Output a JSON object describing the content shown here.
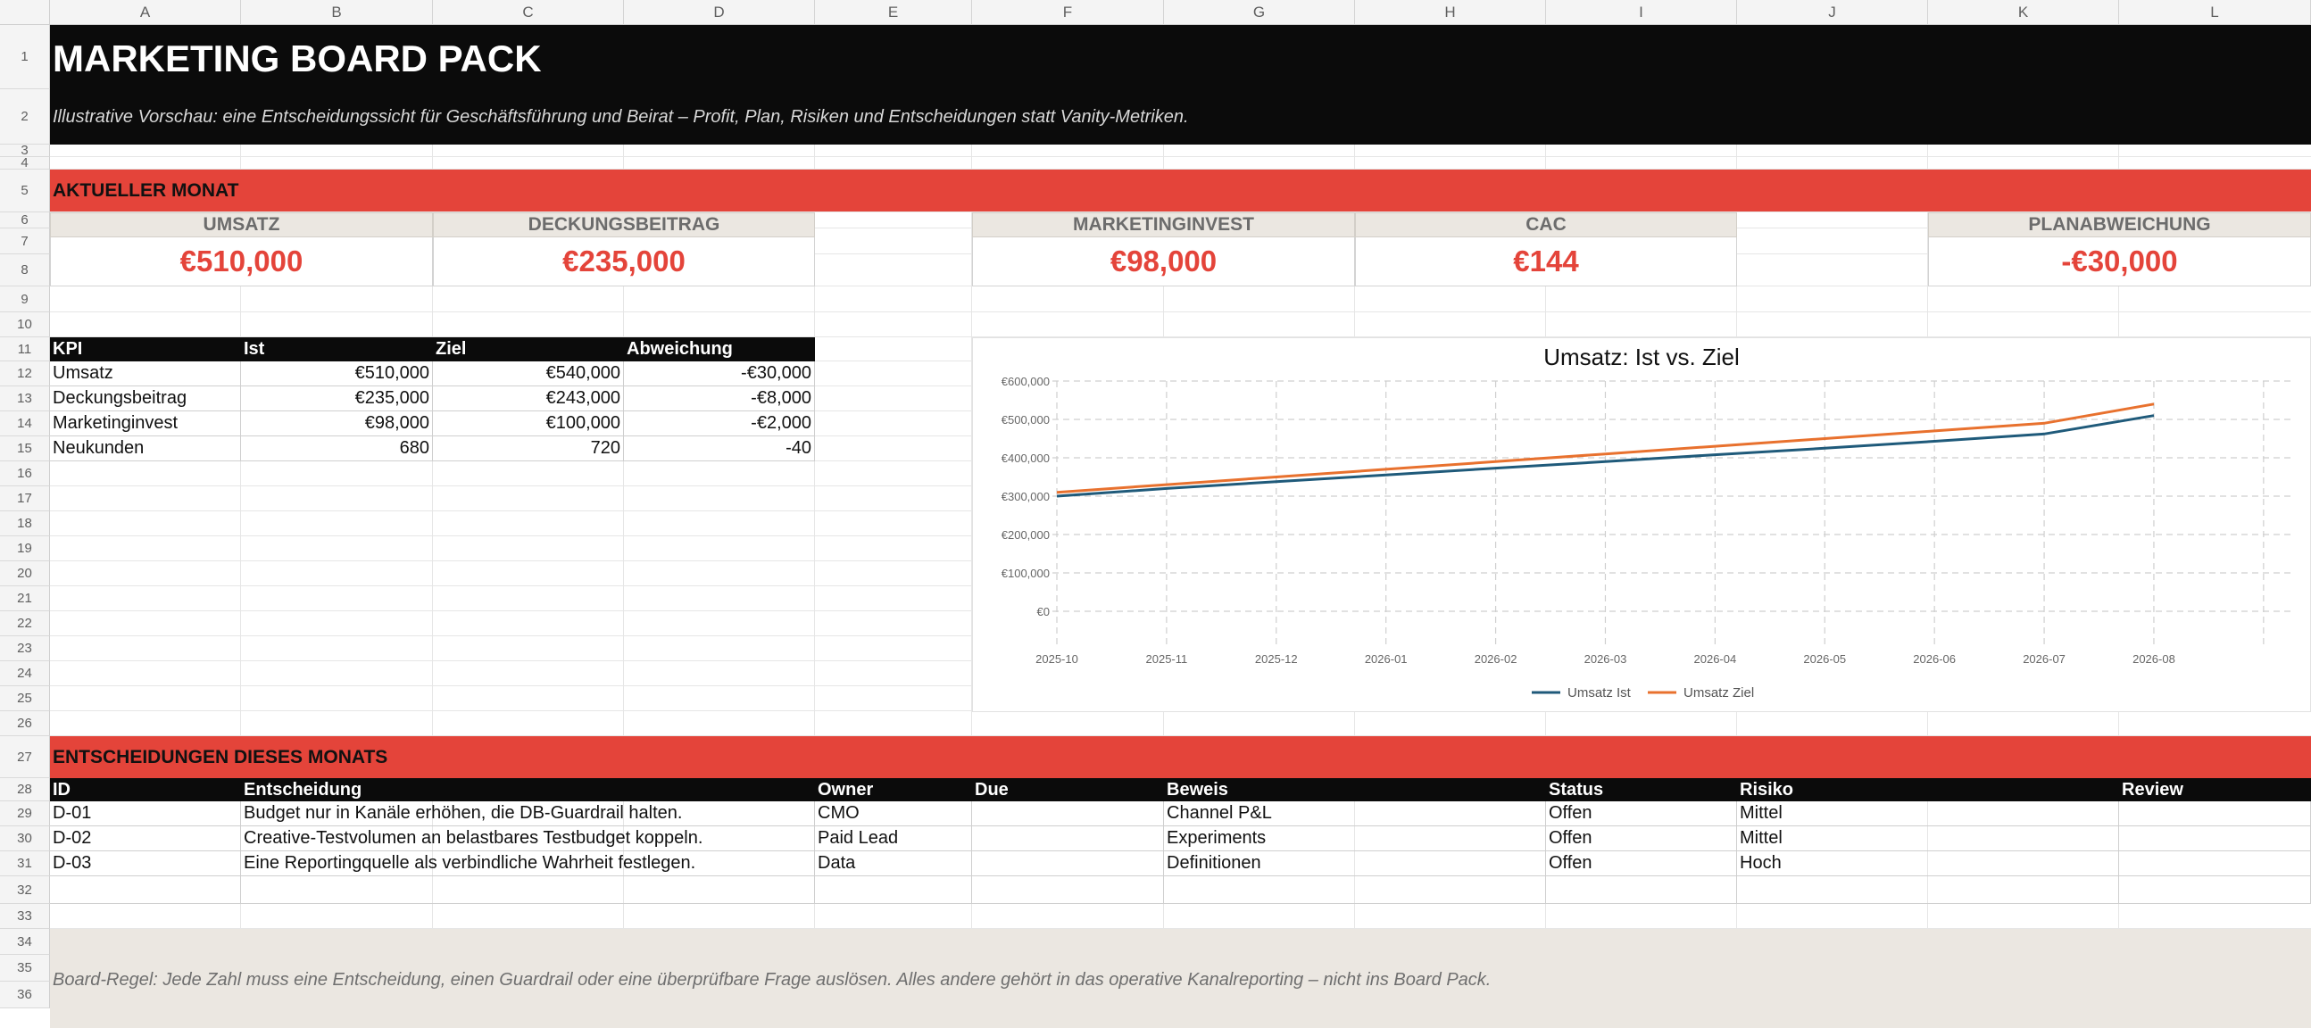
{
  "columns": [
    "A",
    "B",
    "C",
    "D",
    "E",
    "F",
    "G",
    "H",
    "I",
    "J",
    "K",
    "L"
  ],
  "rows": [
    "1",
    "2",
    "3",
    "4",
    "5",
    "6",
    "7",
    "8",
    "9",
    "10",
    "11",
    "12",
    "13",
    "14",
    "15",
    "16",
    "17",
    "18",
    "19",
    "20",
    "21",
    "22",
    "23",
    "24",
    "25",
    "26",
    "27",
    "28",
    "29",
    "30",
    "31",
    "32",
    "33",
    "34",
    "35",
    "36"
  ],
  "header": {
    "title": "MARKETING BOARD PACK",
    "subtitle": "Illustrative Vorschau: eine Entscheidungssicht für Geschäftsführung und Beirat – Profit, Plan, Risiken und Entscheidungen statt Vanity-Metriken."
  },
  "section_month": "AKTUELLER MONAT",
  "kpis": [
    {
      "label": "UMSATZ",
      "value": "€510,000"
    },
    {
      "label": "DECKUNGSBEITRAG",
      "value": "€235,000"
    },
    {
      "label": "MARKETINGINVEST",
      "value": "€98,000"
    },
    {
      "label": "CAC",
      "value": "€144"
    },
    {
      "label": "PLANABWEICHUNG",
      "value": "-€30,000"
    }
  ],
  "kpi_table": {
    "headers": [
      "KPI",
      "Ist",
      "Ziel",
      "Abweichung"
    ],
    "rows": [
      [
        "Umsatz",
        "€510,000",
        "€540,000",
        "-€30,000"
      ],
      [
        "Deckungsbeitrag",
        "€235,000",
        "€243,000",
        "-€8,000"
      ],
      [
        "Marketinginvest",
        "€98,000",
        "€100,000",
        "-€2,000"
      ],
      [
        "Neukunden",
        "680",
        "720",
        "-40"
      ]
    ]
  },
  "section_decisions": "ENTSCHEIDUNGEN DIESES MONATS",
  "decisions": {
    "headers": [
      "ID",
      "Entscheidung",
      "Owner",
      "Due",
      "Beweis",
      "Status",
      "Risiko",
      "Review"
    ],
    "rows": [
      [
        "D-01",
        "Budget nur in Kanäle erhöhen, die DB-Guardrail halten.",
        "CMO",
        "",
        "Channel P&L",
        "Offen",
        "Mittel",
        ""
      ],
      [
        "D-02",
        "Creative-Testvolumen an belastbares Testbudget koppeln.",
        "Paid Lead",
        "",
        "Experiments",
        "Offen",
        "Mittel",
        ""
      ],
      [
        "D-03",
        "Eine Reportingquelle als verbindliche Wahrheit festlegen.",
        "Data",
        "",
        "Definitionen",
        "Offen",
        "Hoch",
        ""
      ]
    ]
  },
  "footer_rule": "Board-Regel: Jede Zahl muss eine Entscheidung, einen Guardrail oder eine überprüfbare Frage auslösen. Alles andere gehört in das operative Kanalreporting – nicht ins Board Pack.",
  "colors": {
    "accent_red": "#e4443a",
    "black": "#0b0b0b",
    "beige": "#ebe7e1",
    "series_ist": "#1f5a7a",
    "series_ziel": "#e8712e"
  },
  "chart_data": {
    "type": "line",
    "title": "Umsatz: Ist vs. Ziel",
    "x": [
      "2025-10",
      "2025-11",
      "2025-12",
      "2026-01",
      "2026-02",
      "2026-03",
      "2026-04",
      "2026-05",
      "2026-06",
      "2026-07",
      "2026-08"
    ],
    "series": [
      {
        "name": "Umsatz Ist",
        "values": [
          300000,
          320000,
          338000,
          355000,
          373000,
          390000,
          408000,
          425000,
          443000,
          462000,
          510000
        ]
      },
      {
        "name": "Umsatz Ziel",
        "values": [
          310000,
          330000,
          350000,
          370000,
          390000,
          410000,
          430000,
          450000,
          470000,
          490000,
          540000
        ]
      }
    ],
    "yticks": [
      "€0",
      "€100,000",
      "€200,000",
      "€300,000",
      "€400,000",
      "€500,000",
      "€600,000"
    ],
    "ylim": [
      0,
      600000
    ],
    "grid": true,
    "legend": "bottom"
  }
}
